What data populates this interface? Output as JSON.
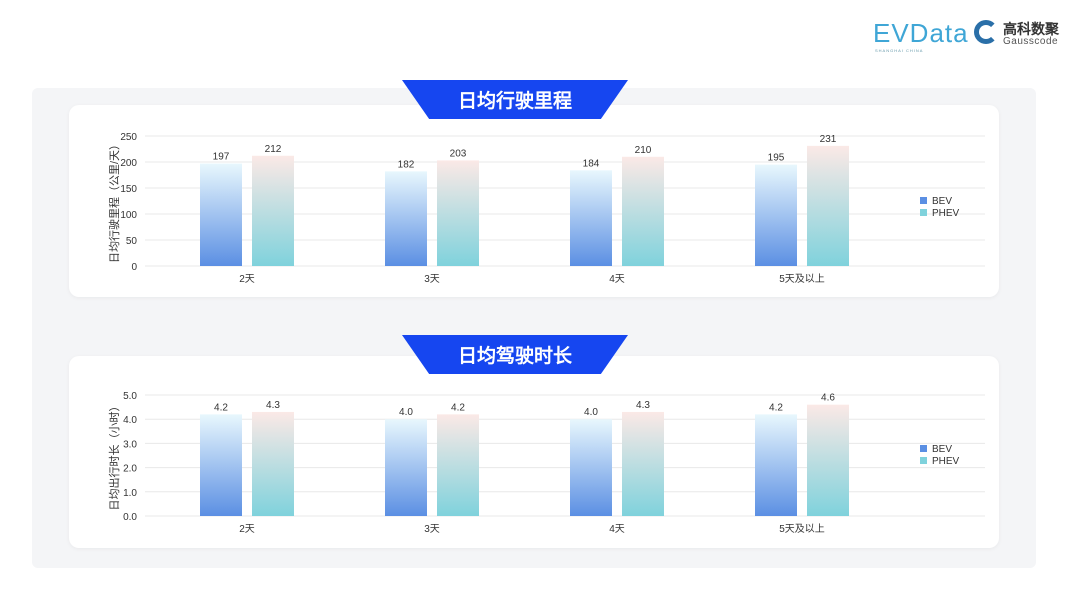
{
  "logos": {
    "evdata": "EVData",
    "evdata_sub": "SHANGHAI CHINA",
    "gauss_cn": "高科数聚",
    "gauss_en": "Gausscode"
  },
  "colors": {
    "banner": "#1646f0",
    "bev_top": "#e8f7fd",
    "bev_bottom": "#5b8fe3",
    "phev_top": "#fbe9e6",
    "phev_bottom": "#7fd2dc"
  },
  "chart_data": [
    {
      "type": "bar",
      "title": "日均行驶里程",
      "ylabel": "日均行驶里程（公里/天）",
      "categories": [
        "2天",
        "3天",
        "4天",
        "5天及以上"
      ],
      "ylim": [
        0,
        250
      ],
      "yticks": [
        "0",
        "50",
        "100",
        "150",
        "200",
        "250"
      ],
      "legend_position": "right",
      "grid": true,
      "series": [
        {
          "name": "BEV",
          "values": [
            197,
            182,
            184,
            195
          ],
          "labels": [
            "197",
            "182",
            "184",
            "195"
          ]
        },
        {
          "name": "PHEV",
          "values": [
            212,
            203,
            210,
            231
          ],
          "labels": [
            "212",
            "203",
            "210",
            "231"
          ]
        }
      ]
    },
    {
      "type": "bar",
      "title": "日均驾驶时长",
      "ylabel": "日均出行时长（小时）",
      "categories": [
        "2天",
        "3天",
        "4天",
        "5天及以上"
      ],
      "ylim": [
        0,
        5
      ],
      "yticks": [
        "0.0",
        "1.0",
        "2.0",
        "3.0",
        "4.0",
        "5.0"
      ],
      "legend_position": "right",
      "grid": true,
      "series": [
        {
          "name": "BEV",
          "values": [
            4.2,
            4.0,
            4.0,
            4.2
          ],
          "labels": [
            "4.2",
            "4.0",
            "4.0",
            "4.2"
          ]
        },
        {
          "name": "PHEV",
          "values": [
            4.3,
            4.2,
            4.3,
            4.6
          ],
          "labels": [
            "4.3",
            "4.2",
            "4.3",
            "4.6"
          ]
        }
      ]
    }
  ]
}
